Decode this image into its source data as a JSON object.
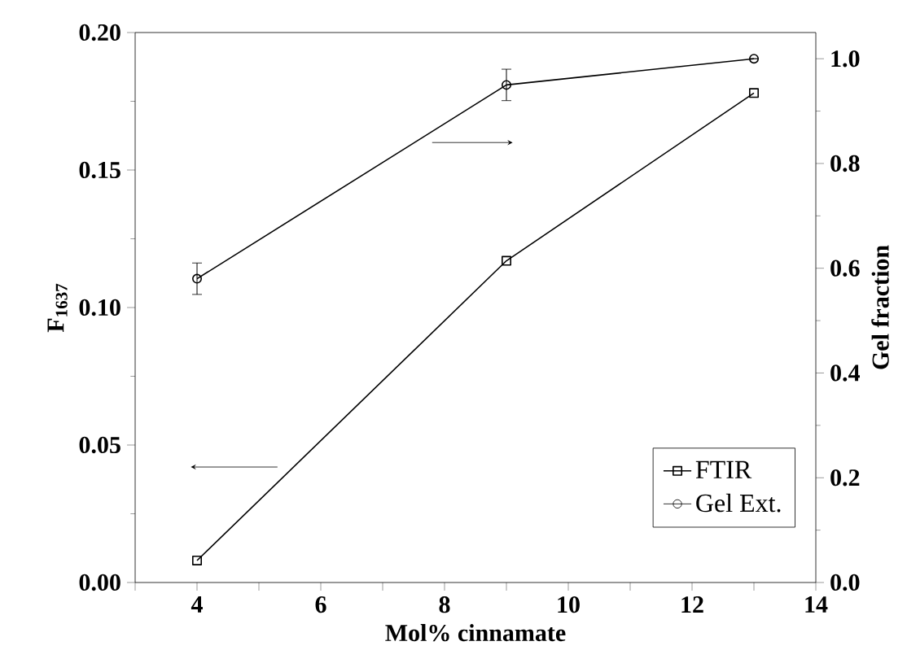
{
  "chart_data": {
    "type": "line",
    "xlabel": "Mol% cinnamate",
    "ylabel": "F$_{1637}$",
    "y2label": "Gel fraction",
    "x": [
      4,
      9,
      13
    ],
    "xlim": [
      3,
      14
    ],
    "xticks": [
      {
        "value": 3,
        "label": null
      },
      4,
      {
        "value": 5,
        "label": null
      },
      6,
      {
        "value": 7,
        "label": null
      },
      8,
      {
        "value": 9,
        "label": null
      },
      10,
      {
        "value": 11,
        "label": null
      },
      12,
      {
        "value": 13,
        "label": null
      },
      14
    ],
    "ylim": [
      0,
      0.2
    ],
    "yticks": [
      {
        "value": 0,
        "label": "0.00"
      },
      {
        "value": 0.05,
        "label": "0.05"
      },
      {
        "value": 0.1,
        "label": "0.10"
      },
      {
        "value": 0.15,
        "label": "0.15"
      },
      {
        "value": 0.2,
        "label": "0.20"
      }
    ],
    "y2lim": [
      0,
      1.05
    ],
    "y2ticks": [
      {
        "value": 0,
        "label": "0.0"
      },
      {
        "value": 0.2,
        "label": "0.2"
      },
      {
        "value": 0.4,
        "label": "0.4"
      },
      {
        "value": 0.6,
        "label": "0.6"
      },
      {
        "value": 0.8,
        "label": "0.8"
      },
      {
        "value": 1,
        "label": "1.0"
      }
    ],
    "series": [
      {
        "name": "FTIR",
        "color": "#000000",
        "marker": "square",
        "values": [
          0.008,
          0.117,
          0.178
        ]
      },
      {
        "name": "Gel Ext.",
        "color": "#000000",
        "marker": "circle",
        "axis": "y2",
        "values": [
          0.58,
          0.95,
          1.0
        ],
        "errors": [
          0.03,
          0.03,
          null
        ]
      }
    ],
    "legend": "bottom right",
    "line_style": "solid",
    "grid": false
  }
}
